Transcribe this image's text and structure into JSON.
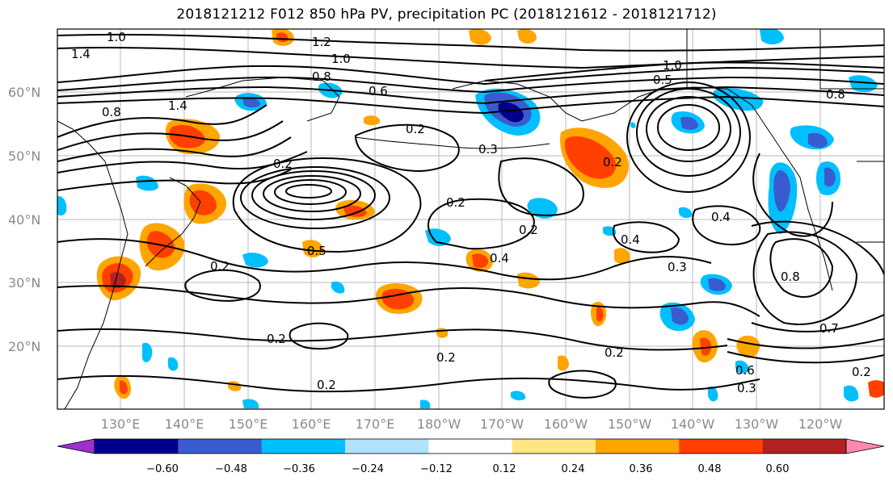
{
  "title": "2018121212 F012 850 hPa PV, precipitation PC (2018121612 - 2018121712)",
  "lat_labels": [
    "60°N",
    "50°N",
    "40°N",
    "30°N",
    "20°N"
  ],
  "lon_labels": [
    "130°E",
    "140°E",
    "150°E",
    "160°E",
    "170°E",
    "180°W",
    "170°W",
    "160°W",
    "150°W",
    "140°W",
    "130°W",
    "120°W"
  ],
  "colorbar": {
    "ticks": [
      "−0.60",
      "−0.48",
      "−0.36",
      "−0.24",
      "−0.12",
      "0.12",
      "0.24",
      "0.36",
      "0.48",
      "0.60"
    ],
    "colors": [
      "#9b30d0",
      "#00008b",
      "#3a5bd0",
      "#00bfff",
      "#b0e2ff",
      "#ffffff",
      "#ffe680",
      "#ffa500",
      "#ff4000",
      "#b22222",
      "#ff88b0"
    ]
  },
  "contour_labels": [
    "1.0",
    "1.4",
    "1.2",
    "0.8",
    "0.6",
    "0.8",
    "1.4",
    "0.2",
    "0.3",
    "0.2",
    "0.2",
    "0.2",
    "0.2",
    "0.2",
    "0.4",
    "0.4",
    "0.3",
    "0.5",
    "0.2",
    "0.2",
    "0.2",
    "0.2",
    "0.3",
    "0.2",
    "0.7",
    "0.8",
    "1.0",
    "0.5",
    "0.4",
    "0.8",
    "0.6"
  ]
}
